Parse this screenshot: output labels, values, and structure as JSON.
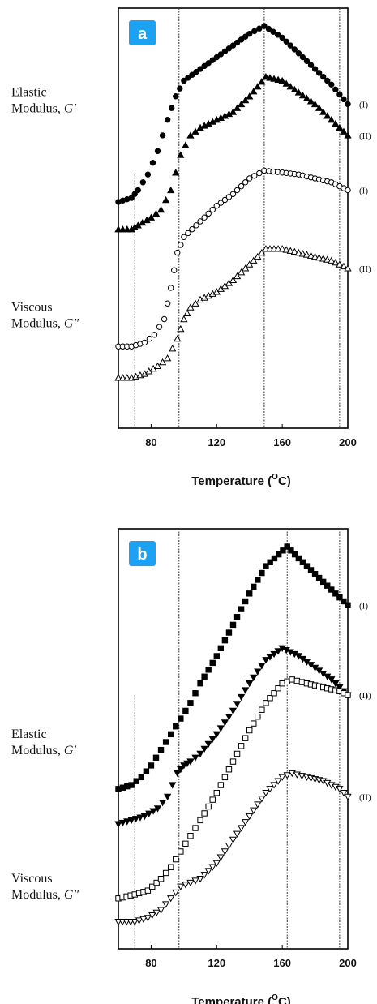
{
  "chart_data": [
    {
      "type": "scatter",
      "panel_label": "a",
      "xlabel": "Temperature (",
      "xlabel_sup": "O",
      "xlabel_tail": "C)",
      "x_ticks": [
        80,
        120,
        160,
        200
      ],
      "xlim": [
        60,
        200
      ],
      "ylim": [
        0,
        1
      ],
      "y_axis_labels": true,
      "vlines": [
        70,
        97,
        149,
        195
      ],
      "group_labels": [
        {
          "line1": "Elastic",
          "line2": "Modulus, ",
          "symbol": "G′",
          "y": 0.8
        },
        {
          "line1": "Viscous",
          "line2": "Modulus, ",
          "symbol": "G″",
          "y": 0.25
        }
      ],
      "series": [
        {
          "marker": "circle-filled",
          "tag": "(I)",
          "x": [
            60,
            68,
            72,
            78,
            84,
            90,
            95,
            100,
            110,
            120,
            130,
            140,
            149,
            160,
            170,
            180,
            190,
            200
          ],
          "y": [
            0.55,
            0.56,
            0.58,
            0.62,
            0.68,
            0.76,
            0.82,
            0.86,
            0.89,
            0.92,
            0.95,
            0.98,
            1.0,
            0.97,
            0.93,
            0.89,
            0.85,
            0.8
          ]
        },
        {
          "marker": "triangle-filled",
          "tag": "(II)",
          "x": [
            60,
            68,
            72,
            80,
            86,
            92,
            98,
            104,
            110,
            120,
            130,
            140,
            150,
            160,
            170,
            180,
            190,
            200
          ],
          "y": [
            0.48,
            0.48,
            0.49,
            0.51,
            0.53,
            0.58,
            0.67,
            0.72,
            0.74,
            0.76,
            0.78,
            0.82,
            0.87,
            0.86,
            0.83,
            0.8,
            0.76,
            0.72
          ]
        },
        {
          "marker": "circle-open",
          "tag": "(I)",
          "x": [
            60,
            68,
            76,
            82,
            88,
            92,
            96,
            100,
            110,
            120,
            130,
            140,
            149,
            160,
            170,
            180,
            190,
            200
          ],
          "y": [
            0.18,
            0.18,
            0.19,
            0.21,
            0.25,
            0.33,
            0.42,
            0.46,
            0.5,
            0.54,
            0.57,
            0.61,
            0.63,
            0.625,
            0.62,
            0.61,
            0.6,
            0.58
          ]
        },
        {
          "marker": "triangle-open",
          "tag": "(II)",
          "x": [
            60,
            68,
            76,
            84,
            90,
            96,
            100,
            104,
            110,
            120,
            130,
            140,
            150,
            160,
            170,
            180,
            190,
            200
          ],
          "y": [
            0.1,
            0.1,
            0.11,
            0.13,
            0.15,
            0.2,
            0.25,
            0.28,
            0.3,
            0.32,
            0.35,
            0.39,
            0.43,
            0.43,
            0.42,
            0.41,
            0.4,
            0.38
          ]
        }
      ]
    },
    {
      "type": "scatter",
      "panel_label": "b",
      "xlabel": "Temperature (",
      "xlabel_sup": "O",
      "xlabel_tail": "C)",
      "x_ticks": [
        80,
        120,
        160,
        200
      ],
      "xlim": [
        60,
        200
      ],
      "ylim": [
        0,
        1
      ],
      "vlines": [
        70,
        97,
        163,
        195
      ],
      "group_labels": [
        {
          "line1": "Elastic",
          "line2": "Modulus, ",
          "symbol": "G′",
          "y": 0.49
        },
        {
          "line1": "Viscous",
          "line2": "Modulus, ",
          "symbol": "G″",
          "y": 0.12
        }
      ],
      "series": [
        {
          "marker": "square-filled",
          "tag": "(I)",
          "x": [
            60,
            68,
            74,
            80,
            86,
            92,
            98,
            104,
            110,
            120,
            130,
            140,
            150,
            163,
            170,
            180,
            190,
            200
          ],
          "y": [
            0.38,
            0.39,
            0.41,
            0.44,
            0.48,
            0.52,
            0.56,
            0.6,
            0.65,
            0.72,
            0.8,
            0.88,
            0.95,
            1.0,
            0.97,
            0.93,
            0.89,
            0.85
          ]
        },
        {
          "marker": "triangle-down-filled",
          "tag": "(II)",
          "x": [
            60,
            68,
            76,
            84,
            90,
            96,
            100,
            104,
            110,
            120,
            130,
            140,
            150,
            160,
            170,
            180,
            190,
            200
          ],
          "y": [
            0.29,
            0.3,
            0.31,
            0.33,
            0.36,
            0.42,
            0.44,
            0.45,
            0.47,
            0.52,
            0.58,
            0.65,
            0.71,
            0.74,
            0.72,
            0.69,
            0.66,
            0.62
          ]
        },
        {
          "marker": "square-open",
          "tag": "(I)",
          "x": [
            60,
            70,
            78,
            86,
            92,
            98,
            104,
            110,
            120,
            130,
            140,
            150,
            160,
            166,
            175,
            185,
            195,
            200
          ],
          "y": [
            0.1,
            0.11,
            0.12,
            0.15,
            0.18,
            0.22,
            0.26,
            0.3,
            0.37,
            0.45,
            0.53,
            0.6,
            0.65,
            0.66,
            0.65,
            0.64,
            0.63,
            0.62
          ]
        },
        {
          "marker": "triangle-down-open",
          "tag": "(II)",
          "x": [
            60,
            70,
            78,
            86,
            92,
            98,
            104,
            110,
            120,
            130,
            140,
            150,
            160,
            166,
            175,
            185,
            195,
            200
          ],
          "y": [
            0.04,
            0.04,
            0.05,
            0.07,
            0.1,
            0.13,
            0.14,
            0.15,
            0.19,
            0.25,
            0.31,
            0.37,
            0.41,
            0.42,
            0.41,
            0.4,
            0.38,
            0.36
          ]
        }
      ]
    }
  ]
}
